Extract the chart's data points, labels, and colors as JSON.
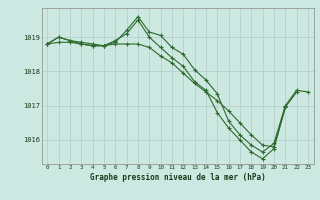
{
  "title": "Graphe pression niveau de la mer (hPa)",
  "background_color": "#cce8e0",
  "grid_color": "#b0cccc",
  "line_color": "#2d6a2d",
  "x_ticks": [
    0,
    1,
    2,
    3,
    4,
    5,
    6,
    7,
    8,
    9,
    10,
    11,
    12,
    13,
    14,
    15,
    16,
    17,
    18,
    19,
    20,
    21,
    22,
    23
  ],
  "ylim": [
    1015.3,
    1019.85
  ],
  "yticks": [
    1016,
    1017,
    1018,
    1019
  ],
  "series": [
    [
      1018.8,
      1019.0,
      1018.9,
      1018.8,
      1018.75,
      1018.75,
      1018.85,
      1019.2,
      1019.6,
      1019.15,
      1019.05,
      1018.7,
      1018.5,
      1018.05,
      1017.75,
      1017.35,
      1016.55,
      1016.15,
      1015.85,
      1015.65,
      1015.9,
      1017.0,
      1017.45,
      1017.4
    ],
    [
      1018.8,
      1019.0,
      1018.9,
      1018.85,
      1018.8,
      1018.75,
      1018.9,
      1019.1,
      1019.5,
      1019.0,
      1018.7,
      1018.4,
      1018.15,
      1017.7,
      1017.45,
      1016.8,
      1016.35,
      1016.0,
      1015.65,
      1015.45,
      1015.75,
      1016.95,
      1017.4,
      null
    ],
    [
      1018.8,
      1018.85,
      1018.85,
      1018.8,
      1018.75,
      1018.75,
      1018.8,
      1018.8,
      1018.8,
      1018.7,
      1018.45,
      1018.25,
      1017.95,
      1017.65,
      1017.4,
      1017.15,
      1016.85,
      1016.5,
      1016.15,
      1015.85,
      1015.8,
      1016.95,
      null,
      null
    ]
  ]
}
